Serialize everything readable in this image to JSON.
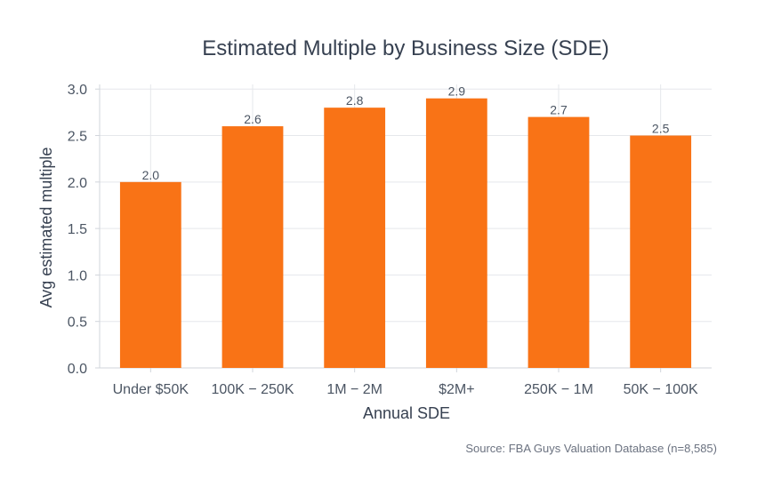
{
  "chart_data": {
    "type": "bar",
    "title": "Estimated Multiple by Business Size (SDE)",
    "xlabel": "Annual SDE",
    "ylabel": "Avg estimated multiple",
    "categories": [
      "Under $50K",
      "100K − 250K",
      "1M − 2M",
      "$2M+",
      "250K − 1M",
      "50K − 100K"
    ],
    "values": [
      2.0,
      2.6,
      2.8,
      2.9,
      2.7,
      2.5
    ],
    "data_labels": [
      "2.0",
      "2.6",
      "2.8",
      "2.9",
      "2.7",
      "2.5"
    ],
    "ylim": [
      0,
      3.05
    ],
    "yticks": [
      0.0,
      0.5,
      1.0,
      1.5,
      2.0,
      2.5,
      3.0
    ],
    "ytick_labels": [
      "0.0",
      "0.5",
      "1.0",
      "1.5",
      "2.0",
      "2.5",
      "3.0"
    ],
    "grid": true,
    "bar_color": "#f97316",
    "source": "Source: FBA Guys Valuation Database (n=8,585)"
  }
}
